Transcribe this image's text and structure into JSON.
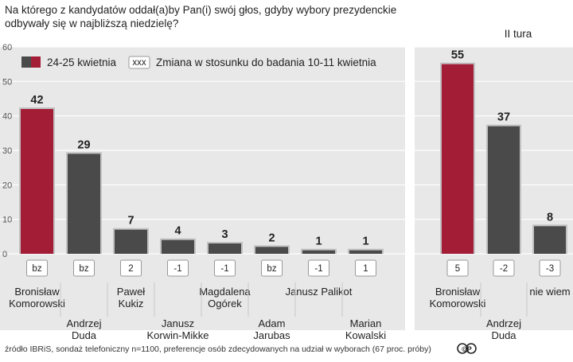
{
  "title_lines": [
    "Na którego z kandydatów oddał(a)by Pan(i) swój głos, gdyby wybory prezydenckie",
    "odbywały się w najbliższą niedzielę?"
  ],
  "source": "źródło IBRiS, sondaż telefoniczny n=1100, preferencje osób zdecydowanych na udział w wyborach (67 proc. próby)",
  "logo_text": "©P",
  "colors": {
    "highlight": "#a31d37",
    "dark": "#4a4a4a",
    "panel_bg": "#e8e8e8"
  },
  "legend": {
    "series_label": "24-25 kwietnia",
    "change_box_text": "xxx",
    "change_label": "Zmiana w stosunku do badania 10-11 kwietnia"
  },
  "chart_data": [
    {
      "type": "bar",
      "title": "",
      "ylim": [
        0,
        60
      ],
      "yticks": [
        0,
        10,
        20,
        30,
        40,
        50,
        60
      ],
      "grid": true,
      "legend_position": "top-left",
      "categories": [
        [
          "Bronisław",
          "Komorowski"
        ],
        [
          "Andrzej",
          "Duda"
        ],
        [
          "Paweł",
          "Kukiz"
        ],
        [
          "Janusz",
          "Korwin-Mikke"
        ],
        [
          "Magdalena",
          "Ogórek"
        ],
        [
          "Adam",
          "Jarubas"
        ],
        [
          "Janusz Palikot"
        ],
        [
          "Marian",
          "Kowalski"
        ]
      ],
      "values": [
        42,
        29,
        7,
        4,
        3,
        2,
        1,
        1
      ],
      "changes": [
        "bz",
        "bz",
        "2",
        "-1",
        "-1",
        "bz",
        "-1",
        "1"
      ],
      "highlight_index": 0,
      "series": [
        {
          "name": "24-25 kwietnia",
          "values": [
            42,
            29,
            7,
            4,
            3,
            2,
            1,
            1
          ]
        }
      ]
    },
    {
      "type": "bar",
      "title": "II tura",
      "ylim": [
        0,
        60
      ],
      "grid": true,
      "categories": [
        [
          "Bronisław",
          "Komorowski"
        ],
        [
          "Andrzej",
          "Duda"
        ],
        [
          "nie wiem"
        ]
      ],
      "values": [
        55,
        37,
        8
      ],
      "changes": [
        "5",
        "-2",
        "-3"
      ],
      "highlight_index": 0
    }
  ]
}
